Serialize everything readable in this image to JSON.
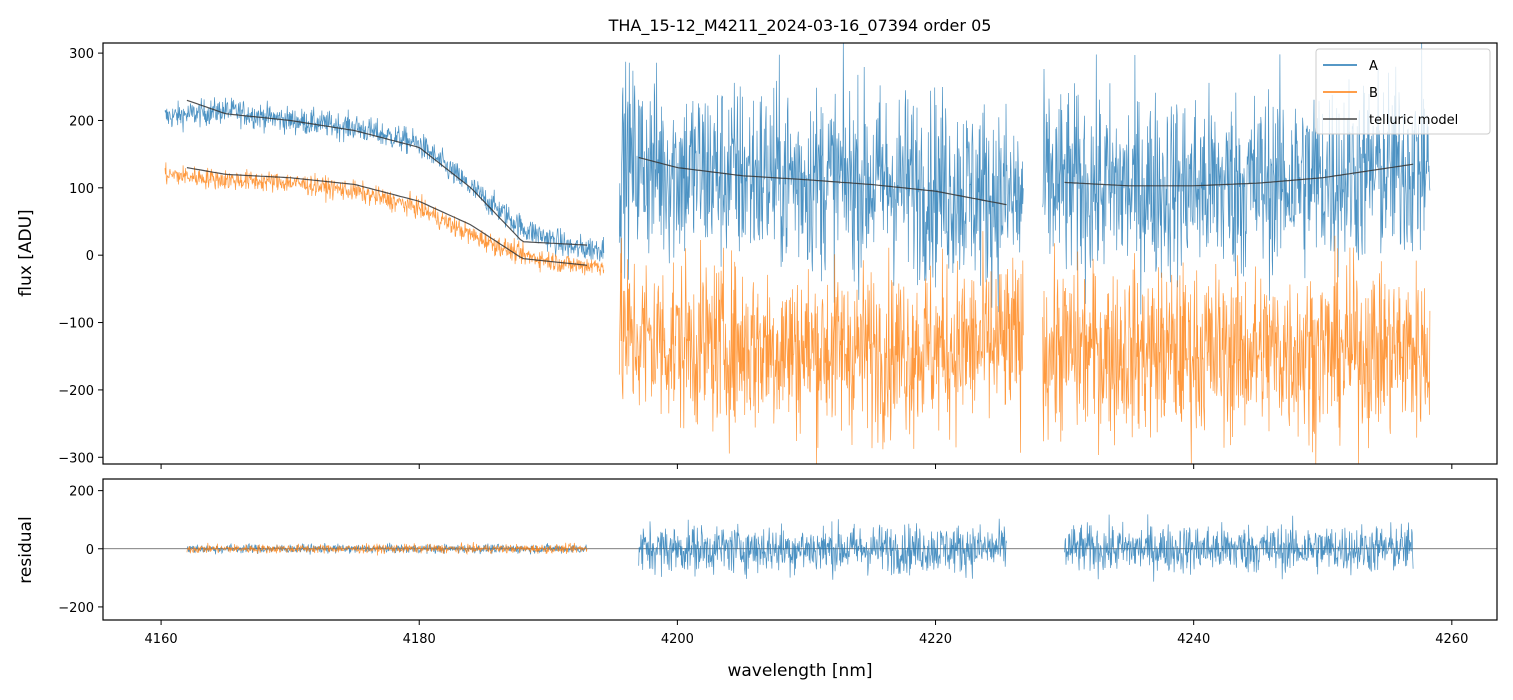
{
  "title": "THA_15-12_M4211_2024-03-16_07394  order 05",
  "colors": {
    "A": "#1f77b4",
    "B": "#ff7f0e",
    "model": "#333333",
    "axes": "#000000"
  },
  "chart_data": [
    {
      "type": "line",
      "panel": "top",
      "title": "THA_15-12_M4211_2024-03-16_07394  order 05",
      "xlabel": "",
      "ylabel": "flux [ADU]",
      "xlim": [
        4155.5,
        4263.5
      ],
      "ylim": [
        -310,
        315
      ],
      "yticks": [
        -300,
        -200,
        -100,
        0,
        100,
        200,
        300
      ],
      "ytick_labels": [
        "−300",
        "−200",
        "−100",
        "0",
        "100",
        "200",
        "300"
      ],
      "xticks": [
        4160,
        4180,
        4200,
        4220,
        4240,
        4260
      ],
      "grid": false,
      "legend_position": "top-right",
      "legend": [
        "A",
        "B",
        "telluric model"
      ],
      "series": [
        {
          "name": "A",
          "segments": [
            {
              "x": [
                4160.3,
                4165,
                4170,
                4175,
                4180,
                4184,
                4188,
                4192,
                4194.3
              ],
              "y": [
                205,
                215,
                200,
                190,
                165,
                100,
                40,
                10,
                10
              ],
              "noise": 28
            },
            {
              "x": [
                4195.5,
                4200,
                4210,
                4220,
                4226.8
              ],
              "y": [
                140,
                125,
                115,
                105,
                80
              ],
              "noise": 200
            },
            {
              "x": [
                4228.3,
                4235,
                4245,
                4258.3
              ],
              "y": [
                105,
                100,
                105,
                135
              ],
              "noise": 200
            }
          ]
        },
        {
          "name": "B",
          "segments": [
            {
              "x": [
                4160.3,
                4165,
                4170,
                4175,
                4180,
                4184,
                4188,
                4192,
                4194.3
              ],
              "y": [
                120,
                112,
                108,
                95,
                70,
                30,
                0,
                -15,
                -15
              ],
              "noise": 22
            },
            {
              "x": [
                4195.5,
                4200,
                4210,
                4220,
                4226.8
              ],
              "y": [
                -120,
                -130,
                -140,
                -140,
                -130
              ],
              "noise": 180
            },
            {
              "x": [
                4228.3,
                4240,
                4258.3
              ],
              "y": [
                -140,
                -145,
                -140
              ],
              "noise": 180
            }
          ]
        },
        {
          "name": "telluric model",
          "segments": [
            {
              "x": [
                4162,
                4165,
                4170,
                4175,
                4180,
                4184,
                4188,
                4193
              ],
              "y": [
                230,
                210,
                200,
                185,
                160,
                100,
                20,
                15
              ]
            },
            {
              "x": [
                4162,
                4165,
                4170,
                4175,
                4180,
                4184,
                4188,
                4193
              ],
              "y": [
                130,
                120,
                115,
                105,
                80,
                45,
                -5,
                -15
              ]
            },
            {
              "x": [
                4197,
                4200,
                4205,
                4210,
                4215,
                4220,
                4225.5
              ],
              "y": [
                145,
                130,
                118,
                112,
                105,
                95,
                75
              ]
            },
            {
              "x": [
                4230,
                4235,
                4240,
                4245,
                4250,
                4257
              ],
              "y": [
                108,
                103,
                103,
                107,
                115,
                135
              ]
            }
          ]
        }
      ]
    },
    {
      "type": "line",
      "panel": "bottom",
      "xlabel": "wavelength [nm]",
      "ylabel": "residual",
      "xlim": [
        4155.5,
        4263.5
      ],
      "ylim": [
        -245,
        240
      ],
      "yticks": [
        -200,
        0,
        200
      ],
      "ytick_labels": [
        "−200",
        "0",
        "200"
      ],
      "xticks": [
        4160,
        4180,
        4200,
        4220,
        4240,
        4260
      ],
      "xtick_labels": [
        "4160",
        "4180",
        "4200",
        "4220",
        "4240",
        "4260"
      ],
      "grid": false,
      "zero_line": true,
      "series": [
        {
          "name": "A",
          "segments": [
            {
              "x": [
                4162,
                4193
              ],
              "y": [
                0,
                0
              ],
              "noise": 22
            },
            {
              "x": [
                4197,
                4225.5
              ],
              "y": [
                0,
                0
              ],
              "noise": 120
            },
            {
              "x": [
                4230,
                4257
              ],
              "y": [
                0,
                0
              ],
              "noise": 120
            }
          ]
        },
        {
          "name": "B",
          "segments": [
            {
              "x": [
                4162,
                4193
              ],
              "y": [
                0,
                0
              ],
              "noise": 22
            }
          ]
        }
      ]
    }
  ]
}
